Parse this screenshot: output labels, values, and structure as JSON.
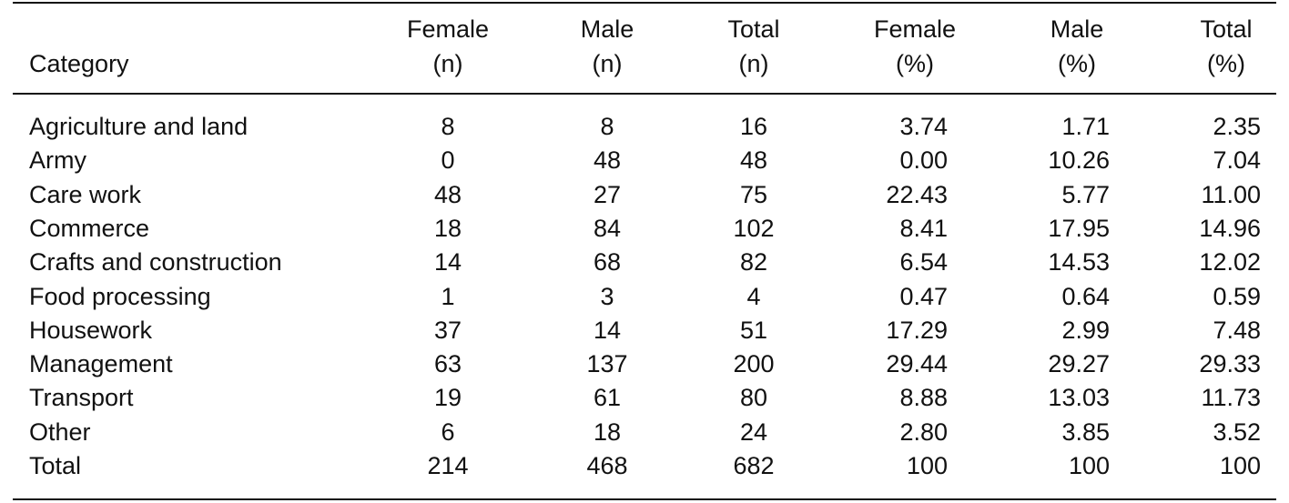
{
  "table": {
    "header": [
      [
        "Category"
      ],
      [
        "Female",
        "(n)"
      ],
      [
        "Male",
        "(n)"
      ],
      [
        "Total",
        "(n)"
      ],
      [
        "Female",
        "(%)"
      ],
      [
        "Male",
        "(%)"
      ],
      [
        "Total",
        "(%)"
      ]
    ],
    "rows": [
      [
        "Agriculture and land",
        "8",
        "8",
        "16",
        "3.74",
        "1.71",
        "2.35"
      ],
      [
        "Army",
        "0",
        "48",
        "48",
        "0.00",
        "10.26",
        "7.04"
      ],
      [
        "Care work",
        "48",
        "27",
        "75",
        "22.43",
        "5.77",
        "11.00"
      ],
      [
        "Commerce",
        "18",
        "84",
        "102",
        "8.41",
        "17.95",
        "14.96"
      ],
      [
        "Crafts and construction",
        "14",
        "68",
        "82",
        "6.54",
        "14.53",
        "12.02"
      ],
      [
        "Food processing",
        "1",
        "3",
        "4",
        "0.47",
        "0.64",
        "0.59"
      ],
      [
        "Housework",
        "37",
        "14",
        "51",
        "17.29",
        "2.99",
        "7.48"
      ],
      [
        "Management",
        "63",
        "137",
        "200",
        "29.44",
        "29.27",
        "29.33"
      ],
      [
        "Transport",
        "19",
        "61",
        "80",
        "8.88",
        "13.03",
        "11.73"
      ],
      [
        "Other",
        "6",
        "18",
        "24",
        "2.80",
        "3.85",
        "3.52"
      ],
      [
        "Total",
        "214",
        "468",
        "682",
        "100",
        "100",
        "100"
      ]
    ]
  }
}
